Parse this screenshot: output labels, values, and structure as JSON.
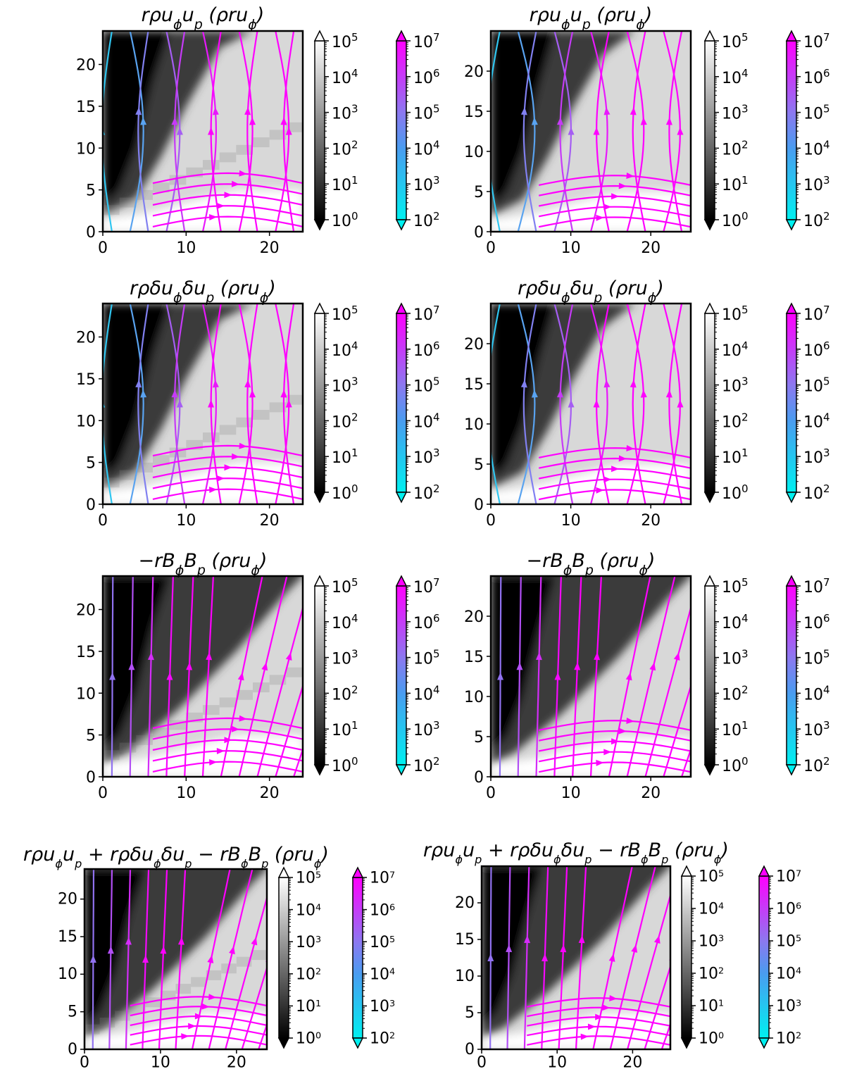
{
  "colors": {
    "stream_low": "#00f0f0",
    "stream_mid": "#8c78f0",
    "stream_high": "#ff00ff",
    "gray_low": "#000000",
    "gray_high": "#ffffff"
  },
  "chart_data": [
    {
      "type": "streamplot",
      "title": "rρu_ϕu_p (ρru_ϕ)",
      "x_ticks": [
        "0",
        "10",
        "20"
      ],
      "y_ticks": [
        "0",
        "5",
        "10",
        "15",
        "20"
      ],
      "xlim": [
        0,
        24
      ],
      "ylim": [
        0,
        24
      ],
      "resolution": "coarse",
      "gray_colorbar": {
        "labels": [
          "10",
          "10",
          "10",
          "10",
          "10",
          "10"
        ],
        "exponents": [
          "0",
          "1",
          "2",
          "3",
          "4",
          "5"
        ]
      },
      "stream_colorbar": {
        "labels": [
          "10",
          "10",
          "10",
          "10",
          "10",
          "10"
        ],
        "exponents": [
          "2",
          "3",
          "4",
          "5",
          "6",
          "7"
        ]
      }
    },
    {
      "type": "streamplot",
      "title": "rρu_ϕu_p (ρru_ϕ)",
      "x_ticks": [
        "0",
        "10",
        "20"
      ],
      "y_ticks": [
        "0",
        "5",
        "10",
        "15",
        "20"
      ],
      "xlim": [
        0,
        25
      ],
      "ylim": [
        0,
        25
      ],
      "resolution": "fine",
      "gray_colorbar": {
        "labels": [
          "10",
          "10",
          "10",
          "10",
          "10",
          "10"
        ],
        "exponents": [
          "0",
          "1",
          "2",
          "3",
          "4",
          "5"
        ]
      },
      "stream_colorbar": {
        "labels": [
          "10",
          "10",
          "10",
          "10",
          "10",
          "10"
        ],
        "exponents": [
          "2",
          "3",
          "4",
          "5",
          "6",
          "7"
        ]
      }
    },
    {
      "type": "streamplot",
      "title": "rρδu_ϕδu_p (ρru_ϕ)",
      "x_ticks": [
        "0",
        "10",
        "20"
      ],
      "y_ticks": [
        "0",
        "5",
        "10",
        "15",
        "20"
      ],
      "xlim": [
        0,
        24
      ],
      "ylim": [
        0,
        24
      ],
      "resolution": "coarse",
      "gray_colorbar": {
        "labels": [
          "10",
          "10",
          "10",
          "10",
          "10",
          "10"
        ],
        "exponents": [
          "0",
          "1",
          "2",
          "3",
          "4",
          "5"
        ]
      },
      "stream_colorbar": {
        "labels": [
          "10",
          "10",
          "10",
          "10",
          "10",
          "10"
        ],
        "exponents": [
          "2",
          "3",
          "4",
          "5",
          "6",
          "7"
        ]
      }
    },
    {
      "type": "streamplot",
      "title": "rρδu_ϕδu_p (ρru_ϕ)",
      "x_ticks": [
        "0",
        "10",
        "20"
      ],
      "y_ticks": [
        "0",
        "5",
        "10",
        "15",
        "20"
      ],
      "xlim": [
        0,
        25
      ],
      "ylim": [
        0,
        25
      ],
      "resolution": "fine",
      "gray_colorbar": {
        "labels": [
          "10",
          "10",
          "10",
          "10",
          "10",
          "10"
        ],
        "exponents": [
          "0",
          "1",
          "2",
          "3",
          "4",
          "5"
        ]
      },
      "stream_colorbar": {
        "labels": [
          "10",
          "10",
          "10",
          "10",
          "10",
          "10"
        ],
        "exponents": [
          "2",
          "3",
          "4",
          "5",
          "6",
          "7"
        ]
      }
    },
    {
      "type": "streamplot",
      "title": "−rB_ϕB_p (ρru_ϕ)",
      "x_ticks": [
        "0",
        "10",
        "20"
      ],
      "y_ticks": [
        "0",
        "5",
        "10",
        "15",
        "20"
      ],
      "xlim": [
        0,
        24
      ],
      "ylim": [
        0,
        24
      ],
      "resolution": "coarse",
      "gray_colorbar": {
        "labels": [
          "10",
          "10",
          "10",
          "10",
          "10",
          "10"
        ],
        "exponents": [
          "0",
          "1",
          "2",
          "3",
          "4",
          "5"
        ]
      },
      "stream_colorbar": {
        "labels": [
          "10",
          "10",
          "10",
          "10",
          "10",
          "10"
        ],
        "exponents": [
          "2",
          "3",
          "4",
          "5",
          "6",
          "7"
        ]
      }
    },
    {
      "type": "streamplot",
      "title": "−rB_ϕB_p (ρru_ϕ)",
      "x_ticks": [
        "0",
        "10",
        "20"
      ],
      "y_ticks": [
        "0",
        "5",
        "10",
        "15",
        "20"
      ],
      "xlim": [
        0,
        25
      ],
      "ylim": [
        0,
        25
      ],
      "resolution": "fine",
      "gray_colorbar": {
        "labels": [
          "10",
          "10",
          "10",
          "10",
          "10",
          "10"
        ],
        "exponents": [
          "0",
          "1",
          "2",
          "3",
          "4",
          "5"
        ]
      },
      "stream_colorbar": {
        "labels": [
          "10",
          "10",
          "10",
          "10",
          "10",
          "10"
        ],
        "exponents": [
          "2",
          "3",
          "4",
          "5",
          "6",
          "7"
        ]
      }
    },
    {
      "type": "streamplot",
      "title": "rρu_ϕu_p + rρδu_ϕδu_p − rB_ϕB_p (ρru_ϕ)",
      "x_ticks": [
        "0",
        "10",
        "20"
      ],
      "y_ticks": [
        "0",
        "5",
        "10",
        "15",
        "20"
      ],
      "xlim": [
        0,
        24
      ],
      "ylim": [
        0,
        24
      ],
      "resolution": "coarse",
      "gray_colorbar": {
        "labels": [
          "10",
          "10",
          "10",
          "10",
          "10",
          "10"
        ],
        "exponents": [
          "0",
          "1",
          "2",
          "3",
          "4",
          "5"
        ]
      },
      "stream_colorbar": {
        "labels": [
          "10",
          "10",
          "10",
          "10",
          "10",
          "10"
        ],
        "exponents": [
          "2",
          "3",
          "4",
          "5",
          "6",
          "7"
        ]
      }
    },
    {
      "type": "streamplot",
      "title": "rρu_ϕu_p + rρδu_ϕδu_p − rB_ϕB_p (ρru_ϕ)",
      "x_ticks": [
        "0",
        "10",
        "20"
      ],
      "y_ticks": [
        "0",
        "5",
        "10",
        "15",
        "20"
      ],
      "xlim": [
        0,
        25
      ],
      "ylim": [
        0,
        25
      ],
      "resolution": "fine",
      "gray_colorbar": {
        "labels": [
          "10",
          "10",
          "10",
          "10",
          "10",
          "10"
        ],
        "exponents": [
          "0",
          "1",
          "2",
          "3",
          "4",
          "5"
        ]
      },
      "stream_colorbar": {
        "labels": [
          "10",
          "10",
          "10",
          "10",
          "10",
          "10"
        ],
        "exponents": [
          "2",
          "3",
          "4",
          "5",
          "6",
          "7"
        ]
      }
    }
  ]
}
